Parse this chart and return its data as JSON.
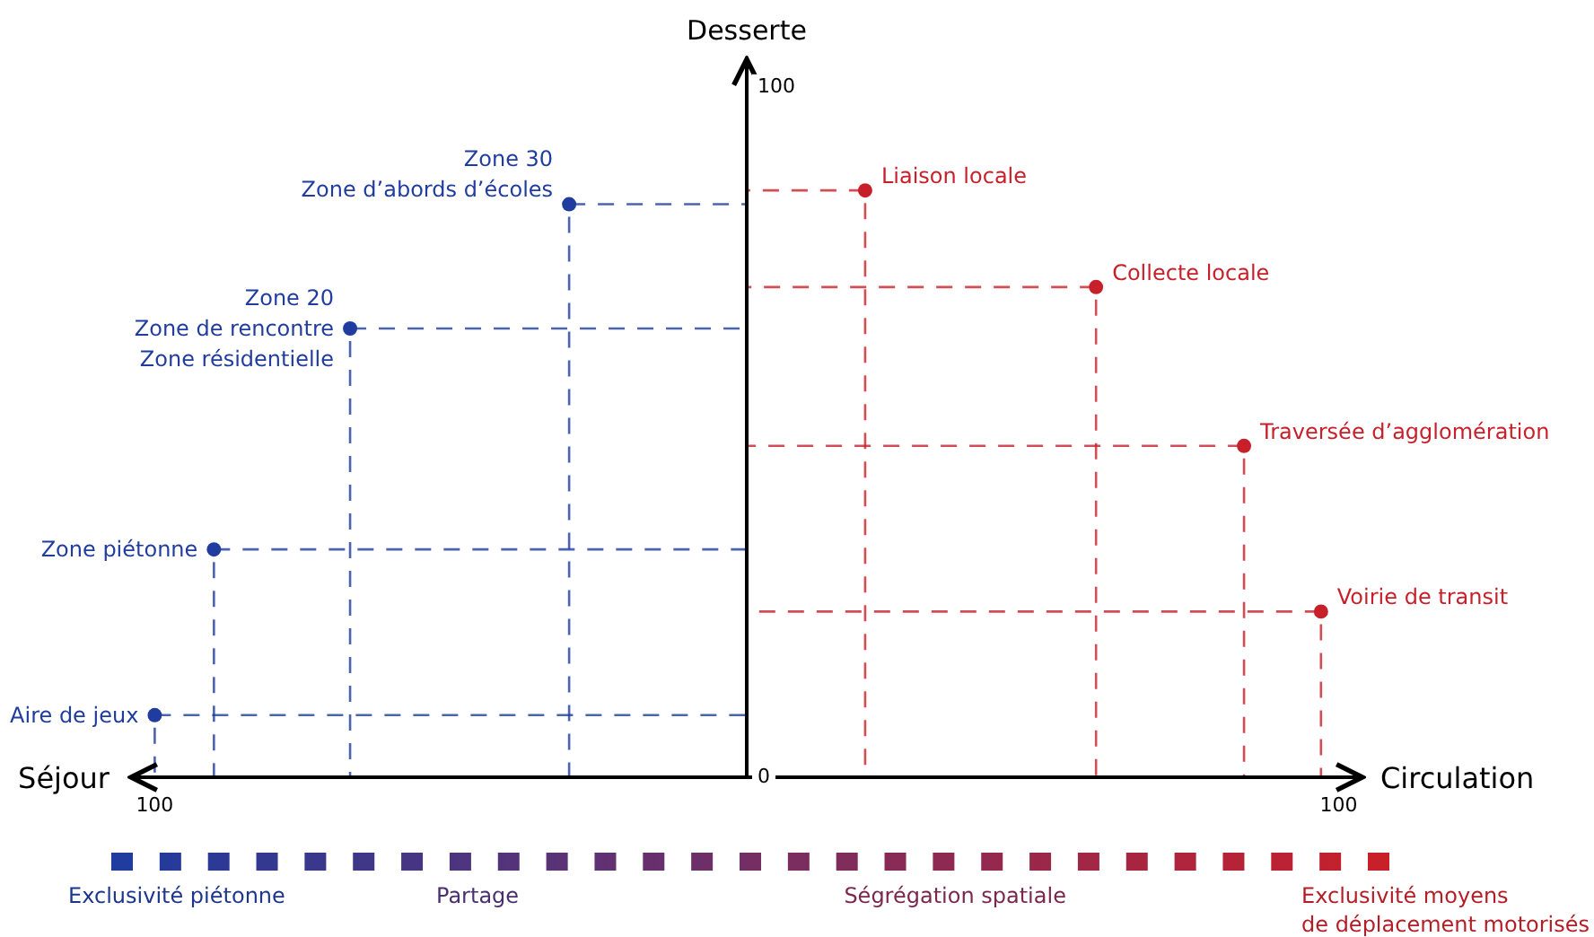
{
  "chart_data": {
    "type": "scatter",
    "ylabel": "Desserte",
    "xlabel": "Circulation",
    "xlim": [
      -104,
      104
    ],
    "ylim": [
      0,
      104
    ],
    "xticks": [
      {
        "value": -100,
        "label": "100"
      },
      {
        "value": 100,
        "label": "100"
      }
    ],
    "yticks": [
      0,
      100
    ],
    "grid": false,
    "marker": "circle",
    "series": [
      {
        "color": "#1f3c9e",
        "x": [
          -100,
          -90,
          -67,
          -30
        ],
        "values": [
          9,
          33,
          65,
          83
        ]
      },
      {
        "color": "#c8202a",
        "x": [
          20,
          59,
          84,
          97
        ],
        "values": [
          85,
          71,
          48,
          24
        ]
      }
    ],
    "annotations": [
      "Séjour",
      {
        "text": "Aire de jeux",
        "x": -100,
        "y": 9
      },
      {
        "text": "Zone piétonne",
        "x": -90,
        "y": 33
      },
      {
        "text": "Zone 20\nZone de rencontre\nZone résidentielle",
        "x": -67,
        "y": 65
      },
      {
        "text": "Zone 30\nZone d’abords d’écoles",
        "x": -30,
        "y": 83
      },
      {
        "text": "Liaison locale",
        "x": 20,
        "y": 85
      },
      {
        "text": "Collecte locale",
        "x": 59,
        "y": 71
      },
      {
        "text": "Traversée d’agglomération",
        "x": 84,
        "y": 48
      },
      {
        "text": "Voirie de transit",
        "x": 97,
        "y": 24
      },
      "Exclusivité piétonne",
      "Partage",
      "Ségrégation spatiale",
      "Exclusivité moyens\nde déplacement motorisés"
    ]
  }
}
